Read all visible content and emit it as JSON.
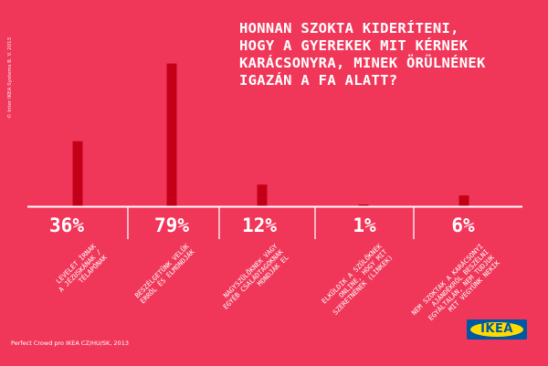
{
  "title_lines": [
    "HONNAN SZOKTA KIDERÍTENI,",
    "HOGY A GYEREKEK MIT KÉRNEK",
    "KARÁCSONYRA, MINEK ÖRÜLNÉNEK",
    "IGAZÁN A FA ALATT?"
  ],
  "copyright": "© Inter IKEA Systems B. V. 2013",
  "source": "Perfect Crowd pro IKEA CZ/HU/SK, 2013",
  "logo_text": "IKEA",
  "colors": {
    "background": "#f0375a",
    "bar": "#c40018",
    "text": "#ffffff",
    "logo_blue": "#0058a3",
    "logo_yellow": "#ffdb00"
  },
  "chart_data": {
    "type": "bar",
    "title": "HONNAN SZOKTA KIDERÍTENI, HOGY A GYEREKEK MIT KÉRNEK KARÁCSONYRA, MINEK ÖRÜLNÉNEK IGAZÁN A FA ALATT?",
    "categories": [
      "LEVELET ÍRNAK A JÉZUSKÁNAK / TÉLAPÓNAK",
      "BESZÉLGETÜNK VELÜK ERRŐL ÉS ELMONDJÁK",
      "NAGYSZÜLŐKNEK VAGY EGYÉB CSALÁDTAGOKNAK MONDJÁK EL",
      "ELKÜLDIK A SZÜLŐKNEK ONLINE, HOGY MIT SZERETNÉNEK (LINKEK)",
      "NEM SZOKTAK A KARÁCSONYI AJÁNDÉKRÓL BESZÉLNI EGYÁLTALÁN, NEM TUDJUK MIT VEGYÜNK NEKIK"
    ],
    "category_lines": [
      [
        "LEVELET ÍRNAK",
        "A JÉZUSKÁNAK /",
        "TÉLAPÓNAK"
      ],
      [
        "BESZÉLGETÜNK VELÜK",
        "ERRŐL ÉS ELMONDJÁK"
      ],
      [
        "NAGYSZÜLŐKNEK VAGY",
        "EGYÉB CSALÁDTAGOKNAK",
        "MONDJÁK EL"
      ],
      [
        "ELKÜLDIK A SZÜLŐKNEK",
        "ONLINE, HOGY MIT",
        "SZERETNÉNEK (LINKEK)"
      ],
      [
        "NEM SZOKTAK A KARÁCSONYI",
        "AJÁNDÉKRÓL BESZÉLNI",
        "EGYÁLTALÁN, NEM TUDJUK",
        "MIT VEGYÜNK NEKIK"
      ]
    ],
    "values": [
      36,
      79,
      12,
      1,
      6
    ],
    "value_labels": [
      "36%",
      "79%",
      "12%",
      "1%",
      "6%"
    ],
    "ylim": [
      0,
      100
    ],
    "grid": false,
    "legend": "none"
  }
}
